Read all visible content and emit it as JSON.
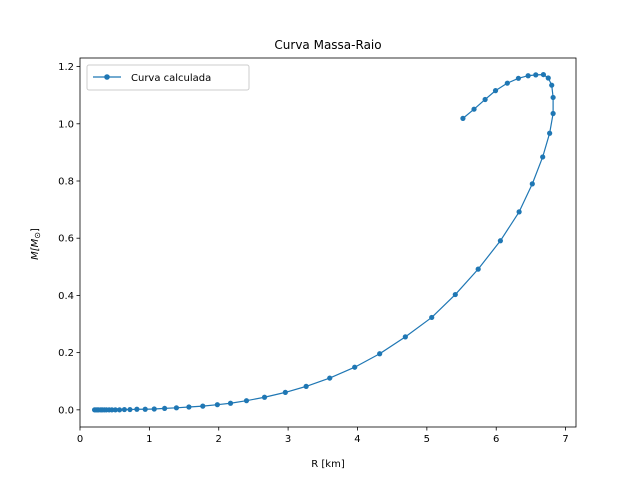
{
  "chart_data": {
    "type": "line",
    "title": "Curva Massa-Raio",
    "xlabel": "R [km]",
    "ylabel": "M[M",
    "ylabel_symbol": "⊙",
    "ylabel_close": "]",
    "xlim": [
      0.0,
      7.15
    ],
    "ylim": [
      -0.06,
      1.23
    ],
    "xticks": [
      0,
      1,
      2,
      3,
      4,
      5,
      6,
      7
    ],
    "yticks": [
      0.0,
      0.2,
      0.4,
      0.6,
      0.8,
      1.0,
      1.2
    ],
    "xtick_labels": [
      "0",
      "1",
      "2",
      "3",
      "4",
      "5",
      "6",
      "7"
    ],
    "ytick_labels": [
      "0.0",
      "0.2",
      "0.4",
      "0.6",
      "0.8",
      "1.0",
      "1.2"
    ],
    "grid": false,
    "legend_position": "top-left",
    "color": "#1f77b4",
    "series": [
      {
        "name": "Curva calculada",
        "x": [
          0.21,
          0.23,
          0.25,
          0.27,
          0.3,
          0.32,
          0.35,
          0.38,
          0.42,
          0.46,
          0.51,
          0.57,
          0.64,
          0.72,
          0.82,
          0.94,
          1.07,
          1.22,
          1.39,
          1.57,
          1.77,
          1.98,
          2.17,
          2.4,
          2.66,
          2.96,
          3.26,
          3.6,
          3.96,
          4.32,
          4.69,
          5.07,
          5.41,
          5.74,
          6.06,
          6.33,
          6.52,
          6.67,
          6.77,
          6.82,
          6.82,
          6.8,
          6.75,
          6.68,
          6.57,
          6.46,
          6.32,
          6.16,
          5.99,
          5.84,
          5.68,
          5.52
        ],
        "y": [
          0.0,
          0.0,
          0.0,
          0.0,
          0.0,
          0.0,
          0.0,
          0.0,
          0.0,
          0.0,
          0.0,
          0.0,
          0.001,
          0.001,
          0.002,
          0.002,
          0.003,
          0.005,
          0.007,
          0.01,
          0.013,
          0.018,
          0.023,
          0.032,
          0.044,
          0.061,
          0.082,
          0.111,
          0.149,
          0.196,
          0.255,
          0.323,
          0.403,
          0.492,
          0.591,
          0.692,
          0.79,
          0.884,
          0.967,
          1.036,
          1.092,
          1.135,
          1.16,
          1.172,
          1.171,
          1.168,
          1.159,
          1.142,
          1.116,
          1.085,
          1.051,
          1.019
        ]
      }
    ]
  }
}
